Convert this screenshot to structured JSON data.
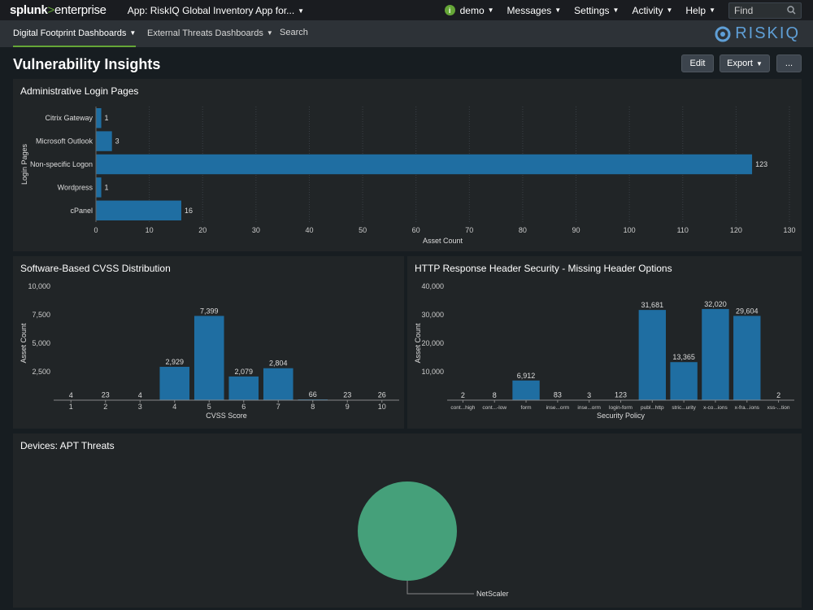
{
  "topbar": {
    "logo_brand": "splunk",
    "logo_gt": ">",
    "logo_product": "enterprise",
    "app_label": "App: RiskIQ Global Inventory App for...",
    "user_initial": "i",
    "user_label": "demo",
    "messages_label": "Messages",
    "settings_label": "Settings",
    "activity_label": "Activity",
    "help_label": "Help",
    "find_placeholder": "Find"
  },
  "nav": {
    "tabs": [
      {
        "label": "Digital Footprint Dashboards"
      },
      {
        "label": "External Threats Dashboards"
      },
      {
        "label": "Search"
      }
    ],
    "brand": "RISKIQ"
  },
  "page": {
    "title": "Vulnerability Insights",
    "edit_label": "Edit",
    "export_label": "Export",
    "more_label": "..."
  },
  "panels": {
    "login": {
      "title": "Administrative Login Pages"
    },
    "cvss": {
      "title": "Software-Based CVSS Distribution"
    },
    "http": {
      "title": "HTTP Response Header Security - Missing Header Options"
    },
    "apt": {
      "title": "Devices: APT Threats"
    }
  },
  "colors": {
    "bar": "#1f6ea2",
    "pie": "#45a07a",
    "accent": "#65a637"
  },
  "chart_data": [
    {
      "id": "login",
      "type": "bar",
      "orientation": "horizontal",
      "categories": [
        "Citrix Gateway",
        "Microsoft Outlook",
        "Non-specific Logon",
        "Wordpress",
        "cPanel"
      ],
      "values": [
        1,
        3,
        123,
        1,
        16
      ],
      "xlabel": "Asset Count",
      "ylabel": "Login Pages",
      "xlim": [
        0,
        130
      ],
      "ticks": [
        0,
        10,
        20,
        30,
        40,
        50,
        60,
        70,
        80,
        90,
        100,
        110,
        120,
        130
      ],
      "grid": true
    },
    {
      "id": "cvss",
      "type": "bar",
      "categories": [
        "1",
        "2",
        "3",
        "4",
        "5",
        "6",
        "7",
        "8",
        "9",
        "10"
      ],
      "values": [
        4,
        23,
        4,
        2929,
        7399,
        2079,
        2804,
        66,
        23,
        26
      ],
      "value_labels": [
        "4",
        "23",
        "4",
        "2,929",
        "7,399",
        "2,079",
        "2,804",
        "66",
        "23",
        "26"
      ],
      "xlabel": "CVSS Score",
      "ylabel": "Asset Count",
      "ylim": [
        0,
        10000
      ],
      "ticks": [
        2500,
        5000,
        7500,
        10000
      ],
      "tick_labels": [
        "2,500",
        "5,000",
        "7,500",
        "10,000"
      ],
      "grid": false
    },
    {
      "id": "http",
      "type": "bar",
      "categories": [
        "cont...high",
        "cont...-low",
        "form",
        "inse...orm",
        "inse...orm",
        "login-form",
        "publ...http",
        "stric...urity",
        "x-co...ions",
        "x-fra...ions",
        "xss-...tion"
      ],
      "values": [
        2,
        8,
        6912,
        83,
        3,
        123,
        31681,
        13365,
        32020,
        29604,
        2
      ],
      "value_labels": [
        "2",
        "8",
        "6,912",
        "83",
        "3",
        "123",
        "31,681",
        "13,365",
        "32,020",
        "29,604",
        "2"
      ],
      "xlabel": "Security Policy",
      "ylabel": "Asset Count",
      "ylim": [
        0,
        40000
      ],
      "ticks": [
        10000,
        20000,
        30000,
        40000
      ],
      "tick_labels": [
        "10,000",
        "20,000",
        "30,000",
        "40,000"
      ],
      "grid": false
    },
    {
      "id": "apt",
      "type": "pie",
      "slices": [
        {
          "label": "NetScaler",
          "value": 1
        }
      ]
    }
  ]
}
